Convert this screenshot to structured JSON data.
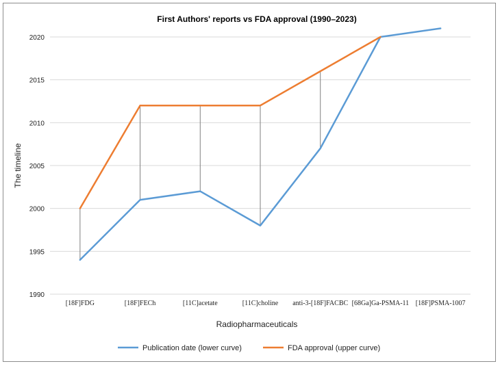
{
  "chart_data": {
    "type": "line",
    "title": "First Authors' reports vs FDA approval (1990–2023)",
    "xlabel": "Radiopharmaceuticals",
    "ylabel": "The timeline",
    "ylim": [
      1990,
      2020
    ],
    "yticks": [
      1990,
      1995,
      2000,
      2005,
      2010,
      2015,
      2020
    ],
    "grid": true,
    "legend_position": "bottom",
    "categories": [
      "[18F]FDG",
      "[18F]FECh",
      "[11C]acetate",
      "[11C]choline",
      "anti-3-[18F]FACBC",
      "[68Ga]Ga-PSMA-11",
      "[18F]PSMA-1007"
    ],
    "series": [
      {
        "name": "Publication date (lower curve)",
        "color": "#5b9bd5",
        "values": [
          1994,
          2001,
          2002,
          1998,
          2007,
          2020,
          2021
        ]
      },
      {
        "name": "FDA approval (upper curve)",
        "color": "#ed7d31",
        "values": [
          2000,
          2012,
          2012,
          2012,
          2016,
          2020,
          null
        ]
      }
    ],
    "drop_lines": true
  }
}
